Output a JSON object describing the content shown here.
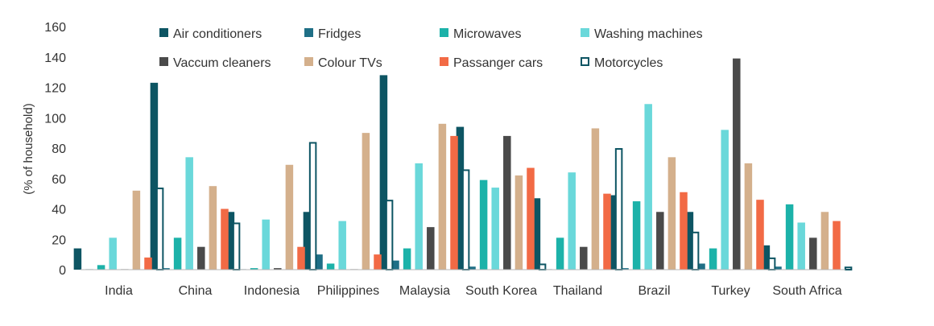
{
  "chart_data": {
    "type": "bar",
    "ylabel": "(% of household)",
    "ylim": [
      0,
      160
    ],
    "yticks": [
      "0",
      "20",
      "40",
      "60",
      "80",
      "100",
      "120",
      "140",
      "160"
    ],
    "grid": false,
    "legend_position": "top",
    "categories": [
      "India",
      "China",
      "Indonesia",
      "Philippines",
      "Malaysia",
      "South Korea",
      "Thailand",
      "Brazil",
      "Turkey",
      "South Africa"
    ],
    "series": [
      {
        "name": "Air conditioners",
        "color": "#0d5563",
        "style": "solid",
        "values": [
          14,
          123,
          38,
          38,
          128,
          94,
          47,
          49,
          38,
          16
        ]
      },
      {
        "name": "Fridges",
        "color": "#1f6f86",
        "style": "solid",
        "values": [
          0,
          1,
          0,
          10,
          6,
          2,
          0,
          1,
          4,
          2
        ]
      },
      {
        "name": "Microwaves",
        "color": "#1cb2a9",
        "style": "solid",
        "values": [
          3,
          21,
          1,
          4,
          14,
          59,
          21,
          45,
          14,
          43
        ]
      },
      {
        "name": "Washing machines",
        "color": "#6ad8da",
        "style": "solid",
        "values": [
          21,
          74,
          33,
          32,
          70,
          54,
          64,
          109,
          92,
          31
        ]
      },
      {
        "name": "Vaccum cleaners",
        "color": "#4a4a4a",
        "style": "solid",
        "values": [
          0,
          15,
          1,
          0,
          28,
          88,
          15,
          38,
          139,
          21
        ]
      },
      {
        "name": "Colour TVs",
        "color": "#d4b08c",
        "style": "solid",
        "values": [
          52,
          55,
          69,
          90,
          96,
          62,
          93,
          74,
          70,
          38
        ]
      },
      {
        "name": "Passanger cars",
        "color": "#f26a45",
        "style": "solid",
        "values": [
          8,
          40,
          15,
          10,
          88,
          67,
          50,
          51,
          46,
          32
        ]
      },
      {
        "name": "Motorcycles",
        "color": "#0d5563",
        "style": "outline",
        "values": [
          54,
          31,
          84,
          46,
          66,
          4,
          80,
          25,
          8,
          2
        ]
      }
    ]
  }
}
